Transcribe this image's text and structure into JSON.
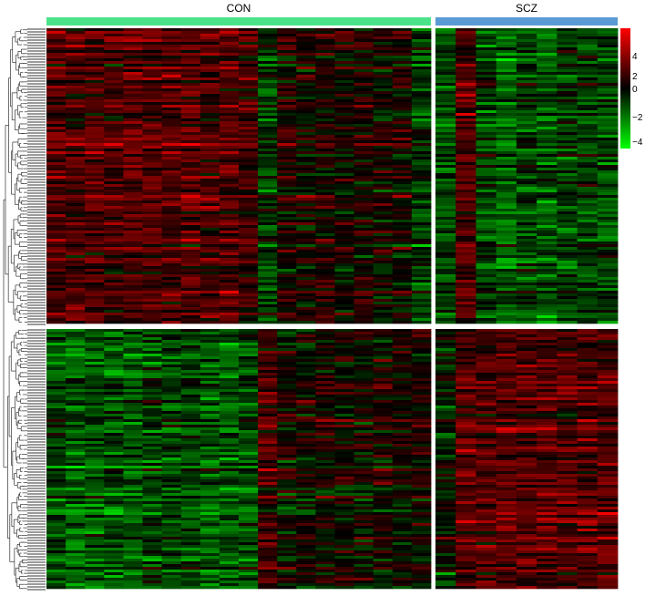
{
  "chart_data": {
    "type": "heatmap",
    "groups": [
      {
        "name": "CON",
        "color": "#4be38a",
        "n_samples": 20
      },
      {
        "name": "SCZ",
        "color": "#5b9bd5",
        "n_samples": 9
      }
    ],
    "row_clusters": [
      {
        "id": "upper",
        "pattern": "higher in CON (red), lower in SCZ (green)"
      },
      {
        "id": "lower",
        "pattern": "lower in CON (green), higher in SCZ (red)"
      }
    ],
    "color_scale": {
      "min": -5,
      "max": 5,
      "colors": [
        "#00ff00",
        "#000000",
        "#ff0000"
      ],
      "ticks": [
        "4",
        "2",
        "0",
        "−2",
        "−4"
      ]
    },
    "dendrogram": "row dendrogram at left"
  }
}
